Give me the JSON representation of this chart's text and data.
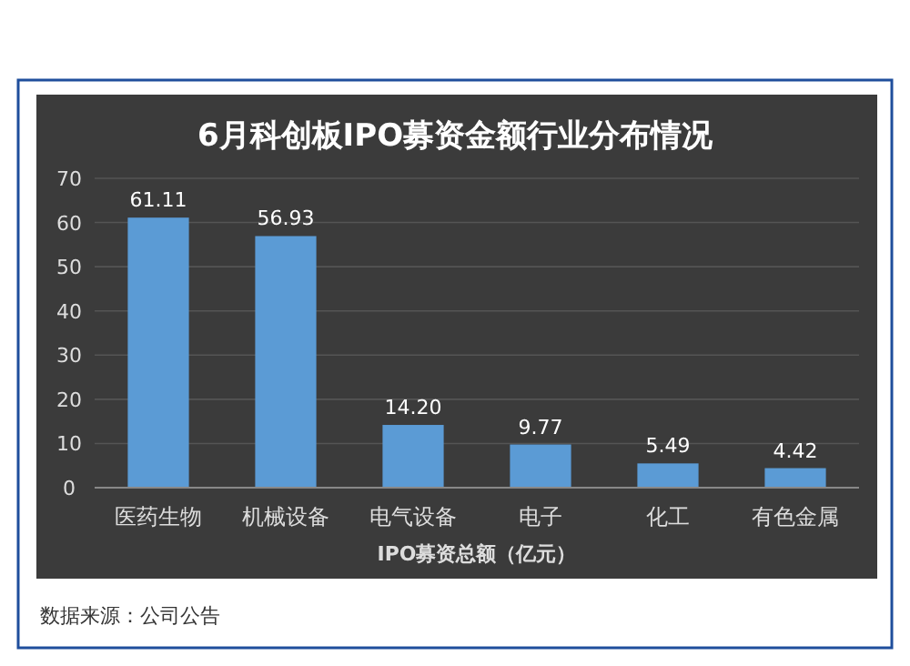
{
  "chart_data": {
    "type": "bar",
    "title": "6月科创板IPO募资金额行业分布情况",
    "xlabel": "IPO募资总额（亿元）",
    "categories": [
      "医药生物",
      "机械设备",
      "电气设备",
      "电子",
      "化工",
      "有色金属"
    ],
    "values": [
      61.11,
      56.93,
      14.2,
      9.77,
      5.49,
      4.42
    ],
    "value_labels": [
      "61.11",
      "56.93",
      "14.20",
      "9.77",
      "5.49",
      "4.42"
    ],
    "color": "#5b9bd5",
    "ylim": [
      0,
      70
    ],
    "yticks": [
      0,
      10,
      20,
      30,
      40,
      50,
      60,
      70
    ],
    "grid": "y",
    "annotations": [
      "数据来源：公司公告"
    ]
  }
}
